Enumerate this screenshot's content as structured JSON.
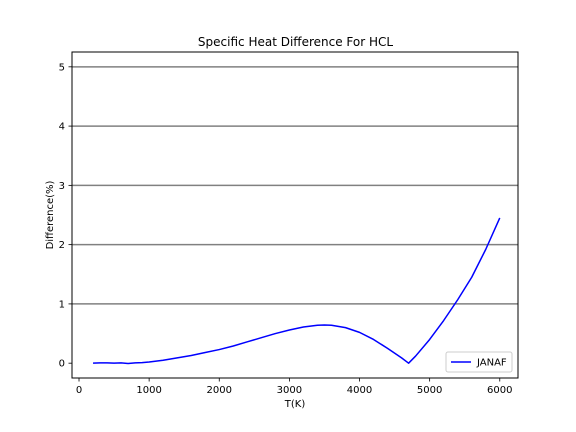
{
  "chart_data": {
    "type": "line",
    "title": "Specific Heat Difference For HCL",
    "xlabel": "T(K)",
    "ylabel": "Difference(%)",
    "xlim": [
      -100,
      6260
    ],
    "ylim": [
      -0.25,
      5.25
    ],
    "xticks": [
      0,
      1000,
      2000,
      3000,
      4000,
      5000,
      6000
    ],
    "xtick_labels": [
      "0",
      "1000",
      "2000",
      "3000",
      "4000",
      "5000",
      "6000"
    ],
    "yticks": [
      0,
      1,
      2,
      3,
      4,
      5
    ],
    "ytick_labels": [
      "0",
      "1",
      "2",
      "3",
      "4",
      "5"
    ],
    "hlines": [
      1,
      2,
      3,
      4,
      5
    ],
    "hline_color": "#808080",
    "legend_placement": "lower-right",
    "series": [
      {
        "name": "JANAF",
        "color": "#0000ff",
        "x": [
          200,
          300,
          400,
          500,
          600,
          700,
          800,
          900,
          1000,
          1200,
          1400,
          1600,
          1800,
          2000,
          2200,
          2400,
          2600,
          2800,
          3000,
          3200,
          3400,
          3500,
          3600,
          3800,
          4000,
          4200,
          4400,
          4600,
          4700,
          4800,
          5000,
          5200,
          5400,
          5600,
          5800,
          6000
        ],
        "y": [
          0.0,
          0.005,
          0.005,
          0.0,
          0.005,
          -0.005,
          0.005,
          0.01,
          0.02,
          0.05,
          0.09,
          0.13,
          0.18,
          0.23,
          0.29,
          0.36,
          0.43,
          0.5,
          0.56,
          0.61,
          0.64,
          0.645,
          0.64,
          0.6,
          0.52,
          0.4,
          0.25,
          0.09,
          0.0,
          0.12,
          0.4,
          0.72,
          1.07,
          1.45,
          1.92,
          2.45
        ]
      }
    ]
  }
}
